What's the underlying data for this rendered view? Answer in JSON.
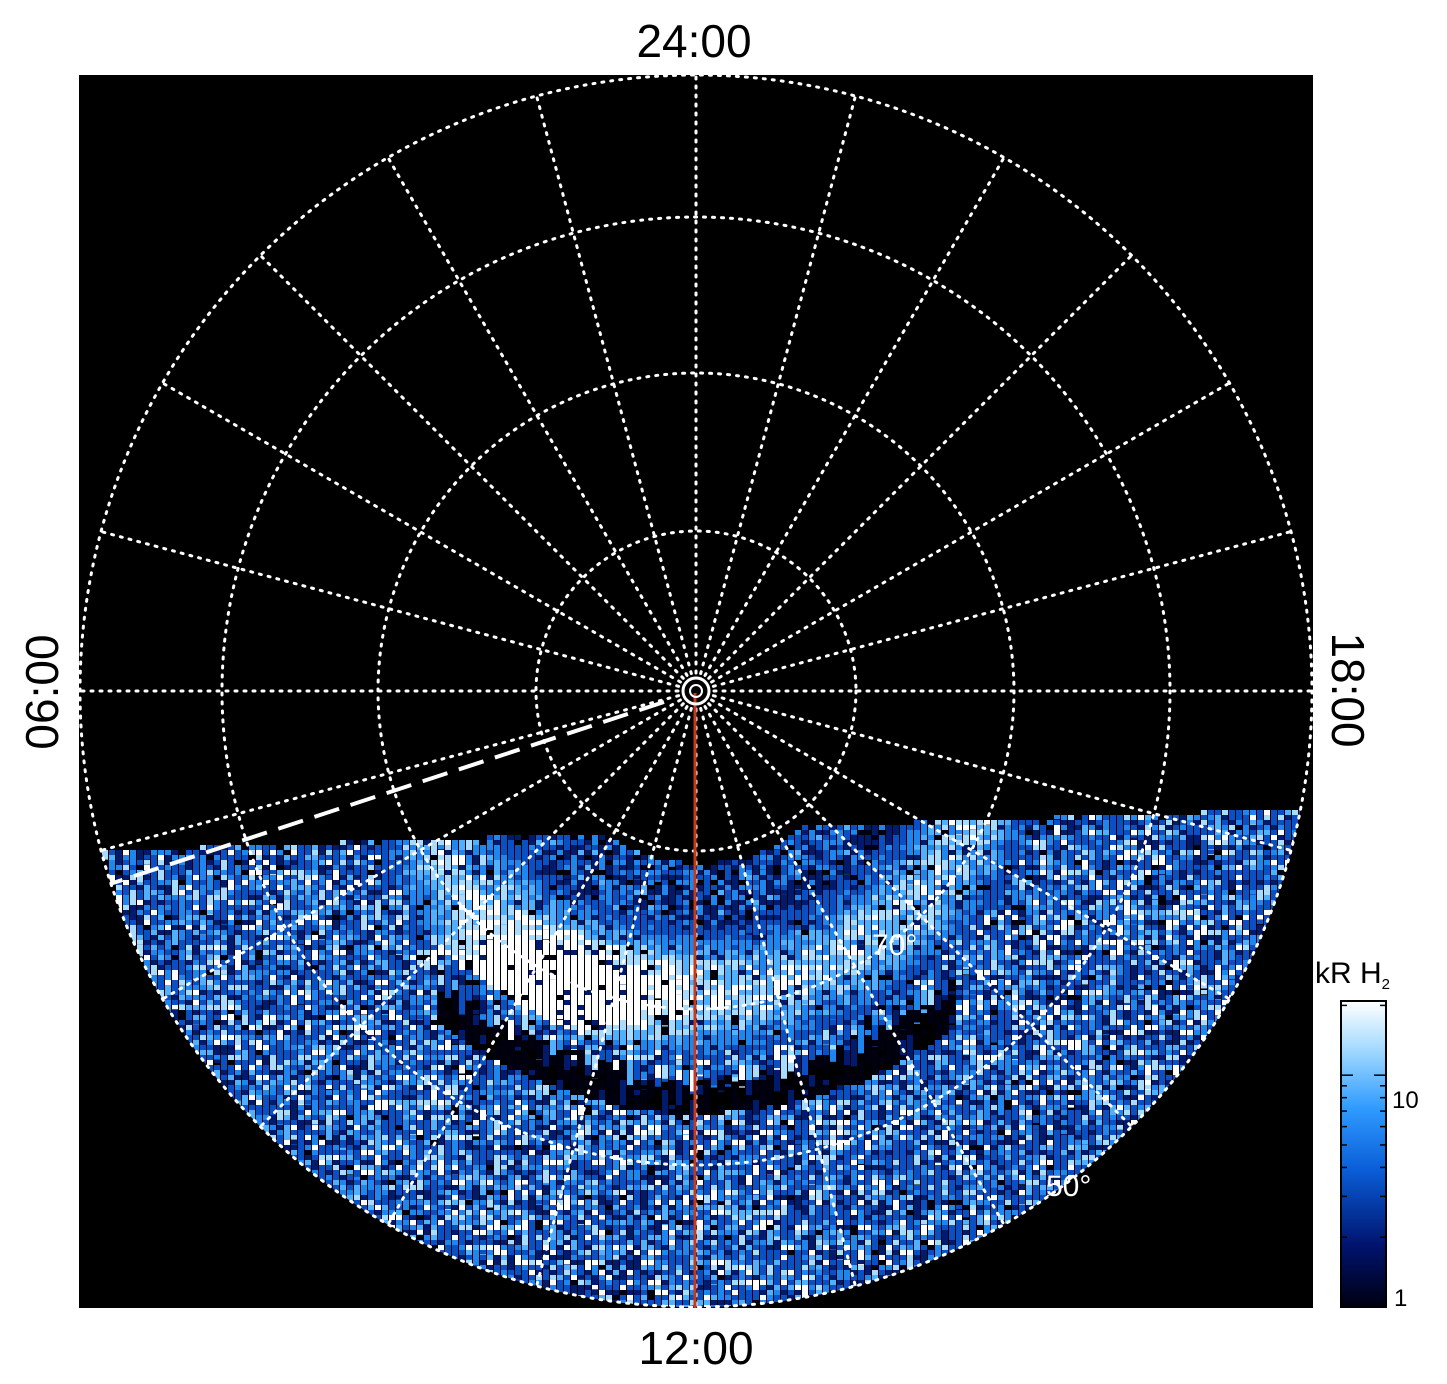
{
  "figure": {
    "local_time_labels": {
      "top": "24:00",
      "bottom": "12:00",
      "left": "06:00",
      "right": "18:00"
    },
    "latitude_labels": [
      "70°",
      "50°"
    ],
    "colorbar": {
      "title": "kR H",
      "title_subscript": "2",
      "tick_labels": [
        "10",
        "1"
      ],
      "colors": [
        "#000010",
        "#00136e",
        "#0a5ed8",
        "#2f9bff",
        "#a8dcff",
        "#ffffff"
      ]
    },
    "colors": {
      "plot_background": "#000000",
      "grid": "#ffffff",
      "meridian_line": "#c8381a",
      "terminator_line": "#ffffff"
    },
    "grid": {
      "latitude_circles": [
        85,
        80,
        70,
        60,
        50
      ],
      "meridian_spacing_hours": 1
    }
  }
}
